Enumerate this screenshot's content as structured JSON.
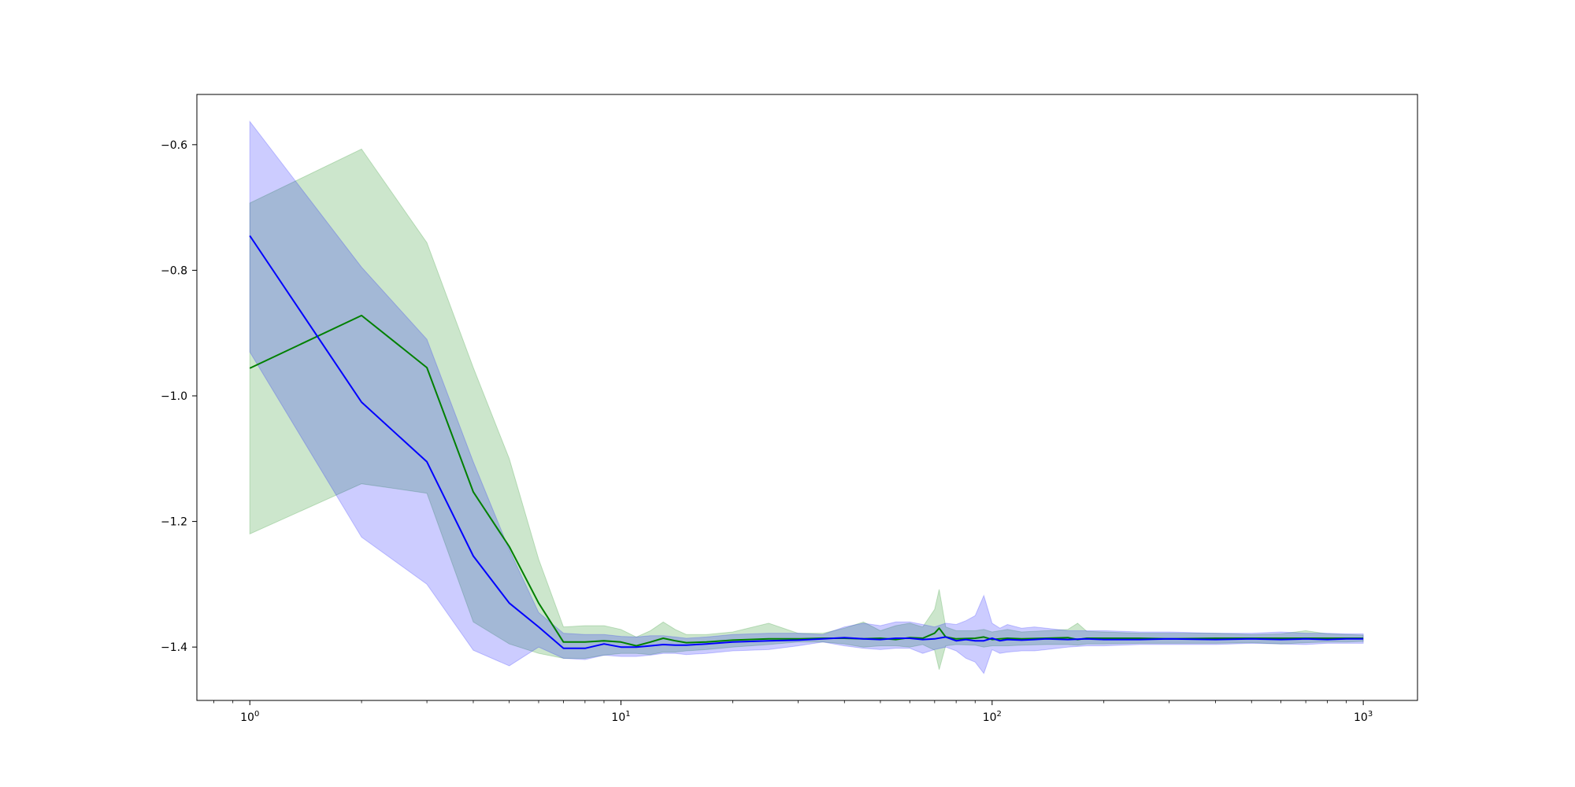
{
  "chart_data": {
    "type": "line",
    "title": "",
    "xlabel": "",
    "ylabel": "",
    "x_scale": "log",
    "xlim": [
      0.72,
      1400
    ],
    "ylim": [
      -1.485,
      -0.52
    ],
    "grid": false,
    "legend": "none",
    "x_ticks": [
      {
        "value": 1,
        "base": "10",
        "exp": "0"
      },
      {
        "value": 10,
        "base": "10",
        "exp": "1"
      },
      {
        "value": 100,
        "base": "10",
        "exp": "2"
      },
      {
        "value": 1000,
        "base": "10",
        "exp": "3"
      }
    ],
    "y_ticks": [
      {
        "value": -0.6,
        "label": "−0.6"
      },
      {
        "value": -0.8,
        "label": "−0.8"
      },
      {
        "value": -1.0,
        "label": "−1.0"
      },
      {
        "value": -1.2,
        "label": "−1.2"
      },
      {
        "value": -1.4,
        "label": "−1.4"
      }
    ],
    "series": [
      {
        "color": "#008000",
        "band_color": "#008000",
        "band_opacity": 0.2,
        "x": [
          1,
          2,
          3,
          4,
          5,
          6,
          7,
          8,
          9,
          10,
          11,
          12,
          13,
          14,
          15,
          17,
          20,
          25,
          30,
          35,
          40,
          45,
          50,
          55,
          60,
          65,
          70,
          72,
          75,
          80,
          90,
          95,
          100,
          110,
          120,
          140,
          160,
          170,
          180,
          200,
          250,
          300,
          400,
          500,
          600,
          700,
          800,
          900,
          1000
        ],
        "mean": [
          -0.956,
          -0.872,
          -0.955,
          -1.153,
          -1.24,
          -1.33,
          -1.392,
          -1.392,
          -1.39,
          -1.392,
          -1.398,
          -1.392,
          -1.386,
          -1.39,
          -1.393,
          -1.392,
          -1.389,
          -1.387,
          -1.387,
          -1.386,
          -1.386,
          -1.387,
          -1.386,
          -1.388,
          -1.385,
          -1.386,
          -1.378,
          -1.37,
          -1.384,
          -1.387,
          -1.386,
          -1.384,
          -1.388,
          -1.386,
          -1.387,
          -1.386,
          -1.385,
          -1.388,
          -1.386,
          -1.386,
          -1.386,
          -1.387,
          -1.386,
          -1.386,
          -1.386,
          -1.386,
          -1.386,
          -1.386,
          -1.386
        ],
        "lower": [
          -1.22,
          -1.14,
          -1.155,
          -1.36,
          -1.395,
          -1.41,
          -1.418,
          -1.418,
          -1.413,
          -1.41,
          -1.41,
          -1.412,
          -1.408,
          -1.408,
          -1.406,
          -1.404,
          -1.4,
          -1.396,
          -1.392,
          -1.392,
          -1.395,
          -1.4,
          -1.398,
          -1.398,
          -1.4,
          -1.396,
          -1.405,
          -1.436,
          -1.398,
          -1.396,
          -1.397,
          -1.4,
          -1.398,
          -1.398,
          -1.397,
          -1.396,
          -1.396,
          -1.397,
          -1.395,
          -1.395,
          -1.394,
          -1.394,
          -1.394,
          -1.393,
          -1.395,
          -1.393,
          -1.392,
          -1.392,
          -1.391
        ],
        "upper": [
          -0.693,
          -0.607,
          -0.756,
          -0.955,
          -1.1,
          -1.26,
          -1.368,
          -1.366,
          -1.366,
          -1.372,
          -1.384,
          -1.374,
          -1.36,
          -1.372,
          -1.38,
          -1.38,
          -1.376,
          -1.362,
          -1.378,
          -1.378,
          -1.37,
          -1.36,
          -1.374,
          -1.366,
          -1.362,
          -1.368,
          -1.34,
          -1.308,
          -1.368,
          -1.374,
          -1.374,
          -1.372,
          -1.376,
          -1.372,
          -1.376,
          -1.374,
          -1.372,
          -1.362,
          -1.375,
          -1.376,
          -1.378,
          -1.378,
          -1.378,
          -1.38,
          -1.379,
          -1.374,
          -1.379,
          -1.38,
          -1.381
        ]
      },
      {
        "color": "#0000ff",
        "band_color": "#0000ff",
        "band_opacity": 0.2,
        "x": [
          1,
          2,
          3,
          4,
          5,
          6,
          7,
          8,
          9,
          10,
          11,
          12,
          13,
          14,
          15,
          17,
          20,
          25,
          30,
          35,
          40,
          45,
          50,
          55,
          60,
          65,
          70,
          75,
          80,
          85,
          90,
          95,
          100,
          105,
          110,
          120,
          130,
          140,
          160,
          180,
          200,
          250,
          300,
          400,
          500,
          600,
          700,
          800,
          900,
          1000
        ],
        "mean": [
          -0.745,
          -1.01,
          -1.105,
          -1.255,
          -1.33,
          -1.368,
          -1.402,
          -1.402,
          -1.395,
          -1.4,
          -1.4,
          -1.398,
          -1.396,
          -1.397,
          -1.397,
          -1.395,
          -1.392,
          -1.39,
          -1.389,
          -1.387,
          -1.385,
          -1.387,
          -1.388,
          -1.386,
          -1.386,
          -1.388,
          -1.387,
          -1.384,
          -1.39,
          -1.388,
          -1.39,
          -1.39,
          -1.386,
          -1.39,
          -1.388,
          -1.389,
          -1.388,
          -1.387,
          -1.388,
          -1.387,
          -1.388,
          -1.388,
          -1.387,
          -1.388,
          -1.387,
          -1.388,
          -1.387,
          -1.388,
          -1.387,
          -1.387
        ],
        "lower": [
          -0.93,
          -1.225,
          -1.3,
          -1.405,
          -1.43,
          -1.4,
          -1.418,
          -1.42,
          -1.413,
          -1.415,
          -1.415,
          -1.413,
          -1.41,
          -1.41,
          -1.412,
          -1.41,
          -1.406,
          -1.404,
          -1.398,
          -1.392,
          -1.398,
          -1.402,
          -1.404,
          -1.402,
          -1.402,
          -1.41,
          -1.404,
          -1.4,
          -1.406,
          -1.418,
          -1.424,
          -1.442,
          -1.404,
          -1.41,
          -1.408,
          -1.406,
          -1.406,
          -1.404,
          -1.4,
          -1.398,
          -1.398,
          -1.396,
          -1.396,
          -1.396,
          -1.394,
          -1.395,
          -1.396,
          -1.394,
          -1.394,
          -1.394
        ],
        "upper": [
          -0.563,
          -0.795,
          -0.91,
          -1.105,
          -1.245,
          -1.345,
          -1.378,
          -1.38,
          -1.38,
          -1.383,
          -1.384,
          -1.382,
          -1.382,
          -1.384,
          -1.386,
          -1.384,
          -1.38,
          -1.378,
          -1.378,
          -1.38,
          -1.368,
          -1.362,
          -1.366,
          -1.36,
          -1.36,
          -1.364,
          -1.368,
          -1.362,
          -1.364,
          -1.358,
          -1.35,
          -1.318,
          -1.362,
          -1.37,
          -1.364,
          -1.37,
          -1.368,
          -1.37,
          -1.374,
          -1.374,
          -1.374,
          -1.376,
          -1.376,
          -1.378,
          -1.378,
          -1.376,
          -1.378,
          -1.378,
          -1.379,
          -1.379
        ]
      }
    ]
  }
}
